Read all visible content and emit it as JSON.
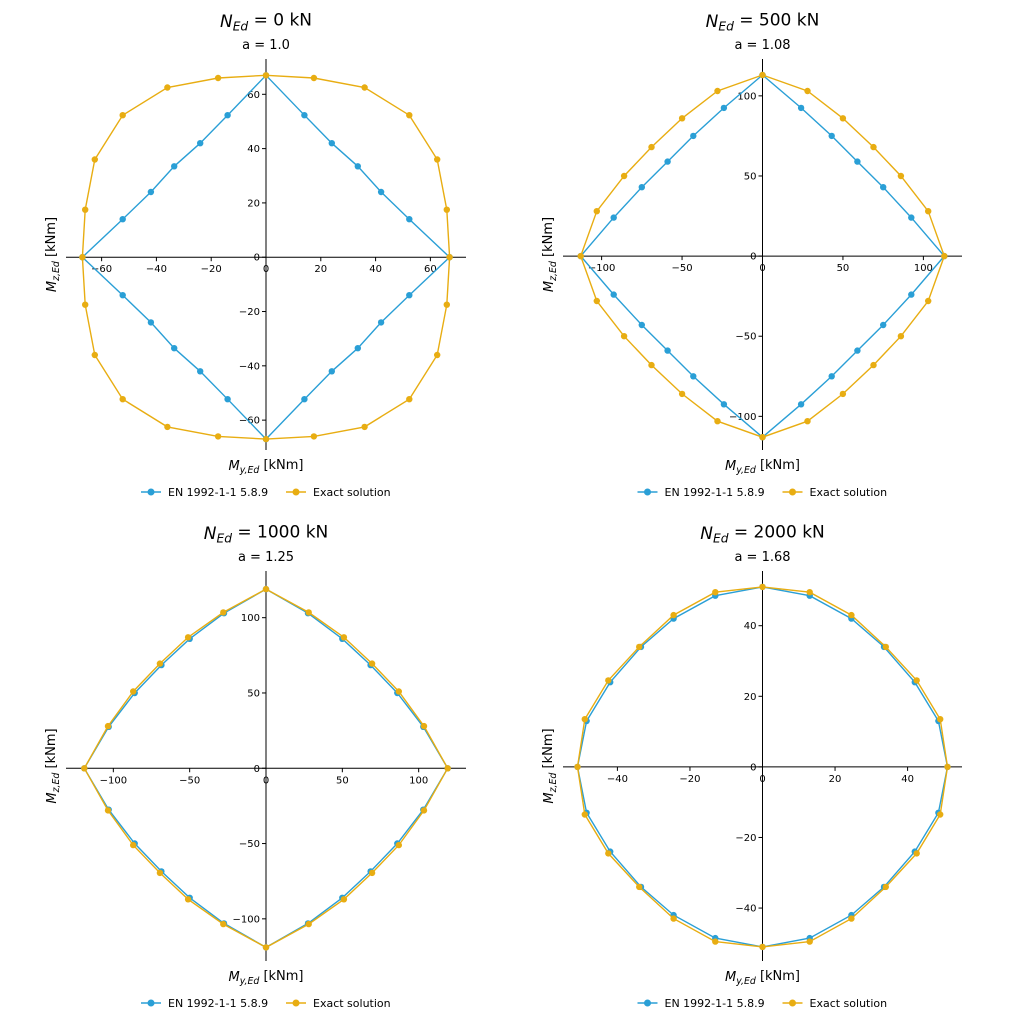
{
  "colors": {
    "en": "#2a9fd6",
    "exact": "#e8ad12",
    "axis": "#000000",
    "background": "#ffffff"
  },
  "chart_data": [
    {
      "type": "line",
      "title": "N_Ed = 0 kN",
      "title_main": "N",
      "title_sub": "Ed",
      "title_tail": " = 0 kN",
      "subtitle": "a = 1.0",
      "xlabel_main": "M",
      "xlabel_sub": "y,Ed",
      "xlabel_tail": " [kNm]",
      "ylabel_main": "M",
      "ylabel_sub": "z,Ed",
      "ylabel_tail": " [kNm]",
      "xlim": [
        -73,
        73
      ],
      "ylim": [
        -71,
        73
      ],
      "xticks": [
        -60,
        -40,
        -20,
        0,
        20,
        40,
        60
      ],
      "yticks": [
        -60,
        -40,
        -20,
        0,
        20,
        40,
        60
      ],
      "legend_position": "bottom-center",
      "series": [
        {
          "name": "EN 1992-1-1 5.8.9",
          "color_key": "en",
          "points": [
            [
              0,
              67
            ],
            [
              14,
              52.3
            ],
            [
              24,
              42
            ],
            [
              33.5,
              33.5
            ],
            [
              42,
              24
            ],
            [
              52.3,
              14
            ],
            [
              67,
              0
            ],
            [
              52.3,
              -14
            ],
            [
              42,
              -24
            ],
            [
              33.5,
              -33.5
            ],
            [
              24,
              -42
            ],
            [
              14,
              -52.3
            ],
            [
              0,
              -67
            ],
            [
              -14,
              -52.3
            ],
            [
              -24,
              -42
            ],
            [
              -33.5,
              -33.5
            ],
            [
              -42,
              -24
            ],
            [
              -52.3,
              -14
            ],
            [
              -67,
              0
            ],
            [
              -52.3,
              14
            ],
            [
              -42,
              24
            ],
            [
              -33.5,
              33.5
            ],
            [
              -24,
              42
            ],
            [
              -14,
              52.3
            ],
            [
              0,
              67
            ]
          ]
        },
        {
          "name": "Exact solution",
          "color_key": "exact",
          "points": [
            [
              0,
              67
            ],
            [
              17.5,
              66
            ],
            [
              36,
              62.5
            ],
            [
              52.3,
              52.3
            ],
            [
              62.5,
              36
            ],
            [
              66,
              17.5
            ],
            [
              67,
              0
            ],
            [
              66,
              -17.5
            ],
            [
              62.5,
              -36
            ],
            [
              52.3,
              -52.3
            ],
            [
              36,
              -62.5
            ],
            [
              17.5,
              -66
            ],
            [
              0,
              -67
            ],
            [
              -17.5,
              -66
            ],
            [
              -36,
              -62.5
            ],
            [
              -52.3,
              -52.3
            ],
            [
              -62.5,
              -36
            ],
            [
              -66,
              -17.5
            ],
            [
              -67,
              0
            ],
            [
              -66,
              17.5
            ],
            [
              -62.5,
              36
            ],
            [
              -52.3,
              52.3
            ],
            [
              -36,
              62.5
            ],
            [
              -17.5,
              66
            ],
            [
              0,
              67
            ]
          ]
        }
      ]
    },
    {
      "type": "line",
      "title": "N_Ed = 500 kN",
      "title_main": "N",
      "title_sub": "Ed",
      "title_tail": " = 500 kN",
      "subtitle": "a = 1.08",
      "xlabel_main": "M",
      "xlabel_sub": "y,Ed",
      "xlabel_tail": " [kNm]",
      "ylabel_main": "M",
      "ylabel_sub": "z,Ed",
      "ylabel_tail": " [kNm]",
      "xlim": [
        -124,
        124
      ],
      "ylim": [
        -121,
        123
      ],
      "xticks": [
        -100,
        -50,
        0,
        50,
        100
      ],
      "yticks": [
        -100,
        -50,
        0,
        50,
        100
      ],
      "legend_position": "bottom-center",
      "series": [
        {
          "name": "EN 1992-1-1 5.8.9",
          "color_key": "en",
          "points": [
            [
              0,
              113
            ],
            [
              24,
              92.5
            ],
            [
              43,
              75
            ],
            [
              59,
              59
            ],
            [
              75,
              43
            ],
            [
              92.5,
              24
            ],
            [
              113,
              0
            ],
            [
              92.5,
              -24
            ],
            [
              75,
              -43
            ],
            [
              59,
              -59
            ],
            [
              43,
              -75
            ],
            [
              24,
              -92.5
            ],
            [
              0,
              -113
            ],
            [
              -24,
              -92.5
            ],
            [
              -43,
              -75
            ],
            [
              -59,
              -59
            ],
            [
              -75,
              -43
            ],
            [
              -92.5,
              -24
            ],
            [
              -113,
              0
            ],
            [
              -92.5,
              24
            ],
            [
              -75,
              43
            ],
            [
              -59,
              59
            ],
            [
              -43,
              75
            ],
            [
              -24,
              92.5
            ],
            [
              0,
              113
            ]
          ]
        },
        {
          "name": "Exact solution",
          "color_key": "exact",
          "points": [
            [
              0,
              113
            ],
            [
              28,
              103
            ],
            [
              50,
              86
            ],
            [
              69,
              68
            ],
            [
              86,
              50
            ],
            [
              103,
              28
            ],
            [
              113,
              0
            ],
            [
              103,
              -28
            ],
            [
              86,
              -50
            ],
            [
              69,
              -68
            ],
            [
              50,
              -86
            ],
            [
              28,
              -103
            ],
            [
              0,
              -113
            ],
            [
              -28,
              -103
            ],
            [
              -50,
              -86
            ],
            [
              -69,
              -68
            ],
            [
              -86,
              -50
            ],
            [
              -103,
              -28
            ],
            [
              -113,
              0
            ],
            [
              -103,
              28
            ],
            [
              -86,
              50
            ],
            [
              -69,
              68
            ],
            [
              -50,
              86
            ],
            [
              -28,
              103
            ],
            [
              0,
              113
            ]
          ]
        }
      ]
    },
    {
      "type": "line",
      "title": "N_Ed = 1000 kN",
      "title_main": "N",
      "title_sub": "Ed",
      "title_tail": " = 1000 kN",
      "subtitle": "a = 1.25",
      "xlabel_main": "M",
      "xlabel_sub": "y,Ed",
      "xlabel_tail": " [kNm]",
      "ylabel_main": "M",
      "ylabel_sub": "z,Ed",
      "ylabel_tail": " [kNm]",
      "xlim": [
        -131,
        131
      ],
      "ylim": [
        -128,
        131
      ],
      "xticks": [
        -100,
        -50,
        0,
        50,
        100
      ],
      "yticks": [
        -100,
        -50,
        0,
        50,
        100
      ],
      "legend_position": "bottom-center",
      "series": [
        {
          "name": "EN 1992-1-1 5.8.9",
          "color_key": "en",
          "points": [
            [
              0,
              119
            ],
            [
              27.5,
              103
            ],
            [
              50,
              86
            ],
            [
              68.5,
              68.5
            ],
            [
              86,
              50
            ],
            [
              103,
              27.5
            ],
            [
              119,
              0
            ],
            [
              103,
              -27.5
            ],
            [
              86,
              -50
            ],
            [
              68.5,
              -68.5
            ],
            [
              50,
              -86
            ],
            [
              27.5,
              -103
            ],
            [
              0,
              -119
            ],
            [
              -27.5,
              -103
            ],
            [
              -50,
              -86
            ],
            [
              -68.5,
              -68.5
            ],
            [
              -86,
              -50
            ],
            [
              -103,
              -27.5
            ],
            [
              -119,
              0
            ],
            [
              -103,
              27.5
            ],
            [
              -86,
              50
            ],
            [
              -68.5,
              68.5
            ],
            [
              -50,
              86
            ],
            [
              -27.5,
              103
            ],
            [
              0,
              119
            ]
          ]
        },
        {
          "name": "Exact solution",
          "color_key": "exact",
          "points": [
            [
              0,
              119
            ],
            [
              28,
              103.5
            ],
            [
              51,
              87
            ],
            [
              69.5,
              69.5
            ],
            [
              87,
              51
            ],
            [
              103.5,
              28
            ],
            [
              119,
              0
            ],
            [
              103.5,
              -28
            ],
            [
              87,
              -51
            ],
            [
              69.5,
              -69.5
            ],
            [
              51,
              -87
            ],
            [
              28,
              -103.5
            ],
            [
              0,
              -119
            ],
            [
              -28,
              -103.5
            ],
            [
              -51,
              -87
            ],
            [
              -69.5,
              -69.5
            ],
            [
              -87,
              -51
            ],
            [
              -103.5,
              -28
            ],
            [
              -119,
              0
            ],
            [
              -103.5,
              28
            ],
            [
              -87,
              51
            ],
            [
              -69.5,
              69.5
            ],
            [
              -51,
              87
            ],
            [
              -28,
              103.5
            ],
            [
              0,
              119
            ]
          ]
        }
      ]
    },
    {
      "type": "line",
      "title": "N_Ed = 2000 kN",
      "title_main": "N",
      "title_sub": "Ed",
      "title_tail": " = 2000 kN",
      "subtitle": "a = 1.68",
      "xlabel_main": "M",
      "xlabel_sub": "y,Ed",
      "xlabel_tail": " [kNm]",
      "ylabel_main": "M",
      "ylabel_sub": "z,Ed",
      "ylabel_tail": " [kNm]",
      "xlim": [
        -55,
        55
      ],
      "ylim": [
        -55,
        55.5
      ],
      "xticks": [
        -40,
        -20,
        0,
        20,
        40
      ],
      "yticks": [
        -40,
        -20,
        0,
        20,
        40
      ],
      "legend_position": "bottom-center",
      "series": [
        {
          "name": "EN 1992-1-1 5.8.9",
          "color_key": "en",
          "points": [
            [
              0,
              51
            ],
            [
              13,
              48.5
            ],
            [
              24.5,
              42
            ],
            [
              33.5,
              34
            ],
            [
              42,
              24
            ],
            [
              48.5,
              13
            ],
            [
              51,
              0
            ],
            [
              48.5,
              -13
            ],
            [
              42,
              -24
            ],
            [
              33.5,
              -34
            ],
            [
              24.5,
              -42
            ],
            [
              13,
              -48.5
            ],
            [
              0,
              -51
            ],
            [
              -13,
              -48.5
            ],
            [
              -24.5,
              -42
            ],
            [
              -33.5,
              -34
            ],
            [
              -42,
              -24
            ],
            [
              -48.5,
              -13
            ],
            [
              -51,
              0
            ],
            [
              -48.5,
              13
            ],
            [
              -42,
              24
            ],
            [
              -33.5,
              34
            ],
            [
              -24.5,
              42
            ],
            [
              -13,
              48.5
            ],
            [
              0,
              51
            ]
          ]
        },
        {
          "name": "Exact solution",
          "color_key": "exact",
          "points": [
            [
              0,
              51
            ],
            [
              13,
              49.5
            ],
            [
              24.5,
              43
            ],
            [
              34,
              34
            ],
            [
              42.5,
              24.5
            ],
            [
              49,
              13.5
            ],
            [
              51,
              0
            ],
            [
              49,
              -13.5
            ],
            [
              42.5,
              -24.5
            ],
            [
              34,
              -34
            ],
            [
              24.5,
              -43
            ],
            [
              13,
              -49.5
            ],
            [
              0,
              -51
            ],
            [
              -13,
              -49.5
            ],
            [
              -24.5,
              -43
            ],
            [
              -34,
              -34
            ],
            [
              -42.5,
              -24.5
            ],
            [
              -49,
              -13.5
            ],
            [
              -51,
              0
            ],
            [
              -49,
              13.5
            ],
            [
              -42.5,
              24.5
            ],
            [
              -34,
              34
            ],
            [
              -24.5,
              43
            ],
            [
              -13,
              49.5
            ],
            [
              0,
              51
            ]
          ]
        }
      ]
    }
  ]
}
